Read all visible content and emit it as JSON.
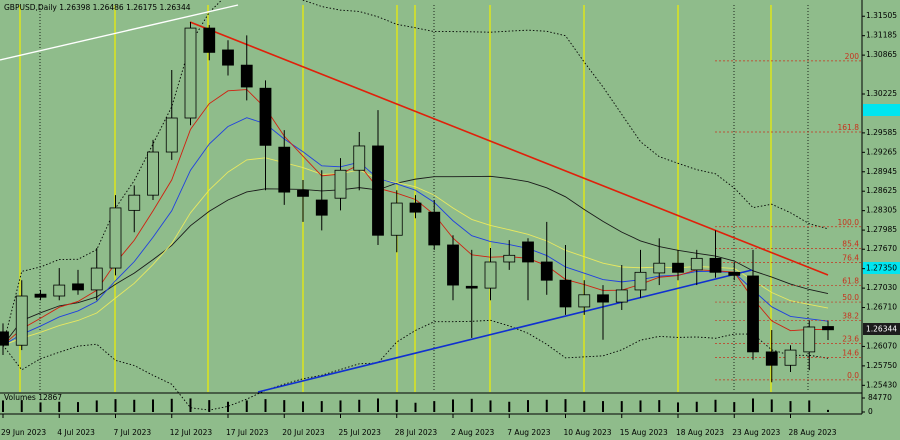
{
  "chart_data": {
    "type": "candlestick",
    "title": "GBPUSD,Daily",
    "categories": [
      "29 Jun 2023",
      null,
      null,
      "4 Jul 2023",
      null,
      null,
      "7 Jul 2023",
      null,
      null,
      "12 Jul 2023",
      null,
      null,
      "17 Jul 2023",
      null,
      null,
      "20 Jul 2023",
      null,
      null,
      "25 Jul 2023",
      null,
      null,
      "28 Jul 2023",
      null,
      null,
      "2 Aug 2023",
      null,
      null,
      "7 Aug 2023",
      null,
      null,
      "10 Aug 2023",
      null,
      null,
      "15 Aug 2023",
      null,
      null,
      "18 Aug 2023",
      null,
      null,
      "23 Aug 2023",
      null,
      null,
      "28 Aug 2023",
      null,
      null
    ],
    "open": [
      1.2631,
      1.2609,
      1.2693,
      1.269,
      1.271,
      1.27,
      1.2736,
      1.2831,
      1.2856,
      1.2927,
      1.2983,
      1.3131,
      1.3095,
      1.307,
      1.3032,
      1.2935,
      1.2864,
      1.2848,
      1.2851,
      1.2897,
      1.2937,
      1.279,
      1.2843,
      1.2828,
      1.2774,
      1.2706,
      1.2703,
      1.2746,
      1.2779,
      1.2746,
      1.2716,
      1.2672,
      1.2692,
      1.268,
      1.27,
      1.2728,
      1.2744,
      1.2733,
      1.2752,
      1.2729,
      1.2723,
      1.2598,
      1.2576,
      1.2598,
      1.26398
    ],
    "high": [
      1.2645,
      1.2716,
      1.27,
      1.2736,
      1.2733,
      1.2769,
      1.2856,
      1.2872,
      1.2947,
      1.3062,
      1.3141,
      1.3136,
      1.3111,
      1.3119,
      1.3045,
      1.2963,
      1.2881,
      1.2897,
      1.2917,
      1.296,
      1.2996,
      1.2864,
      1.2856,
      1.2848,
      1.279,
      1.2766,
      1.2769,
      1.2782,
      1.2785,
      1.2812,
      1.2774,
      1.2716,
      1.2708,
      1.2741,
      1.2766,
      1.2785,
      1.2766,
      1.2766,
      1.2798,
      1.2746,
      1.2766,
      1.2634,
      1.2609,
      1.265,
      1.26486
    ],
    "low": [
      1.2593,
      1.2601,
      1.2683,
      1.2683,
      1.2692,
      1.2683,
      1.2724,
      1.2795,
      1.2848,
      1.2914,
      1.2971,
      1.3078,
      1.3053,
      1.3012,
      1.2864,
      1.284,
      1.2812,
      1.2798,
      1.2831,
      1.2864,
      1.2774,
      1.2762,
      1.2818,
      1.2766,
      1.2683,
      1.2621,
      1.2683,
      1.2733,
      1.2683,
      1.2692,
      1.2659,
      1.2659,
      1.2618,
      1.2667,
      1.2687,
      1.2708,
      1.2716,
      1.2708,
      1.272,
      1.2716,
      1.2585,
      1.2548,
      1.2565,
      1.2568,
      1.26175
    ],
    "close": [
      1.2609,
      1.269,
      1.2688,
      1.2708,
      1.27,
      1.2736,
      1.2835,
      1.2856,
      1.2927,
      1.2983,
      1.3131,
      1.3091,
      1.307,
      1.3034,
      1.2938,
      1.2861,
      1.2854,
      1.2823,
      1.2897,
      1.2937,
      1.279,
      1.2843,
      1.2828,
      1.2774,
      1.2708,
      1.2703,
      1.2746,
      1.2757,
      1.2746,
      1.2716,
      1.2672,
      1.2692,
      1.268,
      1.27,
      1.2729,
      1.2744,
      1.2729,
      1.2752,
      1.2729,
      1.2724,
      1.2598,
      1.2576,
      1.2601,
      1.2639,
      1.26344
    ],
    "up_color": "#8fbc8b",
    "down_color": "#000000",
    "ylim": [
      1.2532,
      1.3169
    ],
    "yticks": [
      1.31505,
      1.31185,
      1.30865,
      1.30225,
      1.29585,
      1.29265,
      1.28945,
      1.28625,
      1.28305,
      1.27985,
      {
        "value": 1.2767,
        "label": "1.27670"
      },
      {
        "value": 1.2735,
        "label": "1.27350"
      },
      {
        "value": 1.2703,
        "label": "1.27030"
      },
      {
        "value": 1.2671,
        "label": "1.26710"
      },
      {
        "value": 1.2607,
        "label": "1.26070"
      },
      {
        "value": 1.2575,
        "label": "1.25750"
      },
      {
        "value": 1.2543,
        "label": "1.25430"
      }
    ],
    "fib": {
      "color": "#c8321e",
      "levels": [
        {
          "label": "200",
          "price": 1.3077
        },
        {
          "label": "161.8",
          "price": 1.296
        },
        {
          "label": "100.0",
          "price": 1.2804
        },
        {
          "label": "85.4",
          "price": 1.2768
        },
        {
          "label": "76.4",
          "price": 1.2745
        },
        {
          "label": "61.8",
          "price": 1.2707
        },
        {
          "label": "50.0",
          "price": 1.268
        },
        {
          "label": "38.2",
          "price": 1.265
        },
        {
          "label": "23.6",
          "price": 1.2612
        },
        {
          "label": "14.6",
          "price": 1.2589
        },
        {
          "label": "0.0",
          "price": 1.2552
        }
      ]
    },
    "volume": {
      "name": "Volumes",
      "color": "#000000",
      "values": [
        70000,
        72000,
        58000,
        62000,
        60000,
        70000,
        78000,
        74000,
        76000,
        80000,
        82000,
        72000,
        62000,
        70000,
        78000,
        72000,
        64000,
        66000,
        70000,
        74000,
        82000,
        74000,
        56000,
        66000,
        76000,
        80000,
        70000,
        62000,
        72000,
        74000,
        78000,
        68000,
        66000,
        66000,
        70000,
        72000,
        58000,
        62000,
        74000,
        60000,
        82000,
        76000,
        66000,
        70000,
        12867
      ],
      "ylim": [
        0,
        84770
      ],
      "yticks": [
        0,
        84770
      ]
    }
  }
}
